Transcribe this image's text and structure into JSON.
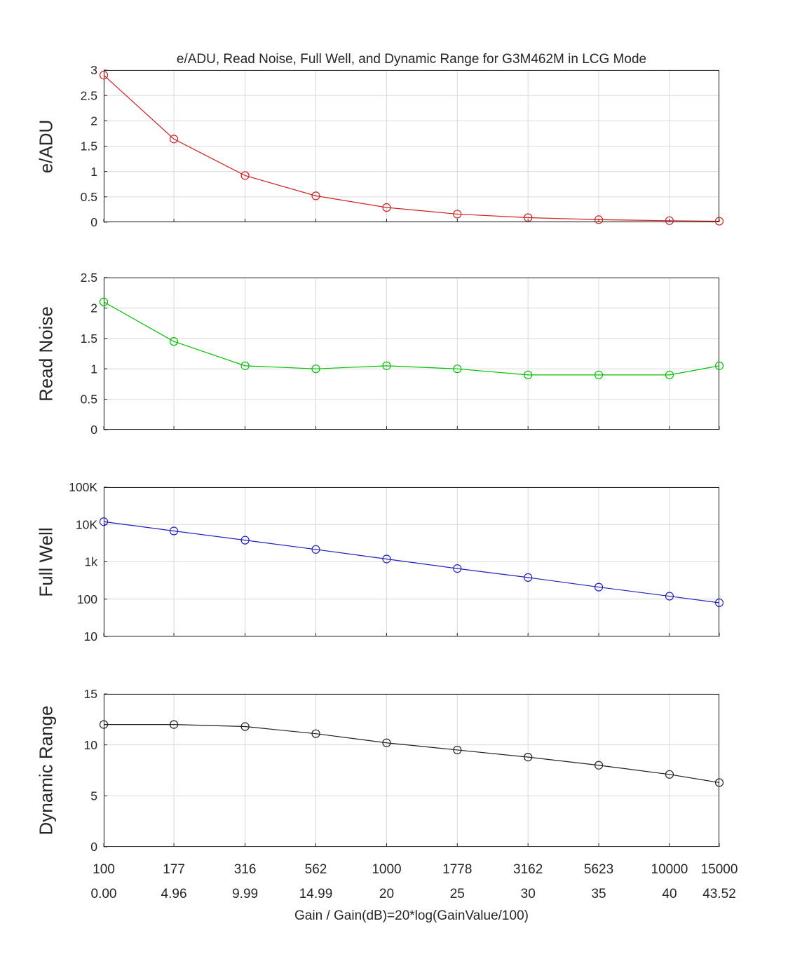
{
  "chart_data": {
    "type": "line",
    "title": "e/ADU, Read Noise, Full Well, and Dynamic Range for G3M462M in LCG Mode",
    "xlabel": "Gain / Gain(dB)=20*log(GainValue/100)",
    "x_scale": "log",
    "grid": true,
    "legend": "none",
    "x_gain": [
      100,
      177,
      316,
      562,
      1000,
      1778,
      3162,
      5623,
      10000,
      15000
    ],
    "x_tick_labels_gain": [
      "100",
      "177",
      "316",
      "562",
      "1000",
      "1778",
      "3162",
      "5623",
      "10000",
      "15000"
    ],
    "x_tick_labels_db": [
      "0.00",
      "4.96",
      "9.99",
      "14.99",
      "20",
      "25",
      "30",
      "35",
      "40",
      "43.52"
    ],
    "style": {
      "background": "#ffffff",
      "grid_color": "#d9d9d9",
      "axis_color": "#262626"
    },
    "subplots": [
      {
        "name": "e/ADU",
        "ylabel": "e/ADU",
        "color": "#d02020",
        "yscale": "linear",
        "ylim": [
          0,
          3
        ],
        "yticks": [
          0,
          0.5,
          1,
          1.5,
          2,
          2.5,
          3
        ],
        "ytick_labels": [
          "0",
          "0.5",
          "1",
          "1.5",
          "2",
          "2.5",
          "3"
        ],
        "values": [
          2.9,
          1.64,
          0.92,
          0.52,
          0.29,
          0.16,
          0.09,
          0.05,
          0.03,
          0.02
        ]
      },
      {
        "name": "Read Noise",
        "ylabel": "Read Noise",
        "color": "#00c000",
        "yscale": "linear",
        "ylim": [
          0,
          2.5
        ],
        "yticks": [
          0,
          0.5,
          1,
          1.5,
          2,
          2.5
        ],
        "ytick_labels": [
          "0",
          "0.5",
          "1",
          "1.5",
          "2",
          "2.5"
        ],
        "values": [
          2.1,
          1.45,
          1.05,
          1.0,
          1.05,
          1.0,
          0.9,
          0.9,
          0.9,
          1.05
        ]
      },
      {
        "name": "Full Well",
        "ylabel": "Full Well",
        "color": "#2020c0",
        "yscale": "log",
        "ylim": [
          10,
          100000
        ],
        "yticks": [
          10,
          100,
          1000,
          10000,
          100000
        ],
        "ytick_labels": [
          "10",
          "100",
          "1k",
          "10K",
          "100K"
        ],
        "values": [
          11900,
          6700,
          3800,
          2150,
          1190,
          660,
          380,
          210,
          120,
          80
        ]
      },
      {
        "name": "Dynamic Range",
        "ylabel": "Dynamic Range",
        "color": "#202020",
        "yscale": "linear",
        "ylim": [
          0,
          15
        ],
        "yticks": [
          0,
          5,
          10,
          15
        ],
        "ytick_labels": [
          "0",
          "5",
          "10",
          "15"
        ],
        "values": [
          12,
          12,
          11.8,
          11.1,
          10.2,
          9.5,
          8.8,
          8,
          7.1,
          6.3
        ]
      }
    ]
  }
}
